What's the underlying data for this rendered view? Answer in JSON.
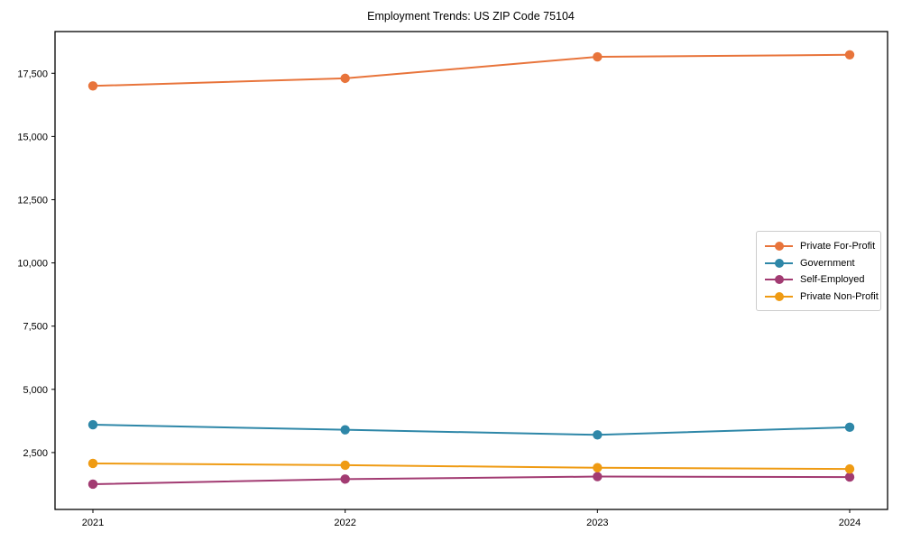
{
  "chart_data": {
    "type": "line",
    "title": "Employment Trends: US ZIP Code 75104",
    "categories": [
      "2021",
      "2022",
      "2023",
      "2024"
    ],
    "series": [
      {
        "name": "Private For-Profit",
        "color": "#e8743b",
        "values": [
          17000,
          17300,
          18150,
          18230
        ]
      },
      {
        "name": "Government",
        "color": "#2e87a8",
        "values": [
          3600,
          3400,
          3200,
          3500
        ]
      },
      {
        "name": "Self-Employed",
        "color": "#a23b72",
        "values": [
          1250,
          1450,
          1550,
          1530
        ]
      },
      {
        "name": "Private Non-Profit",
        "color": "#ef9b13",
        "values": [
          2070,
          2000,
          1900,
          1850
        ]
      }
    ],
    "xlabel": "",
    "ylabel": "",
    "ylim": [
      250,
      19150
    ],
    "yticks": [
      {
        "value": 2500,
        "label": "2,500"
      },
      {
        "value": 5000,
        "label": "5,000"
      },
      {
        "value": 7500,
        "label": "7,500"
      },
      {
        "value": 10000,
        "label": "10,000"
      },
      {
        "value": 12500,
        "label": "12,500"
      },
      {
        "value": 15000,
        "label": "15,000"
      },
      {
        "value": 17500,
        "label": "17,500"
      }
    ],
    "grid": false,
    "legend_position": "middle-right",
    "axis_color": "#000000",
    "background_color": "#ffffff"
  }
}
